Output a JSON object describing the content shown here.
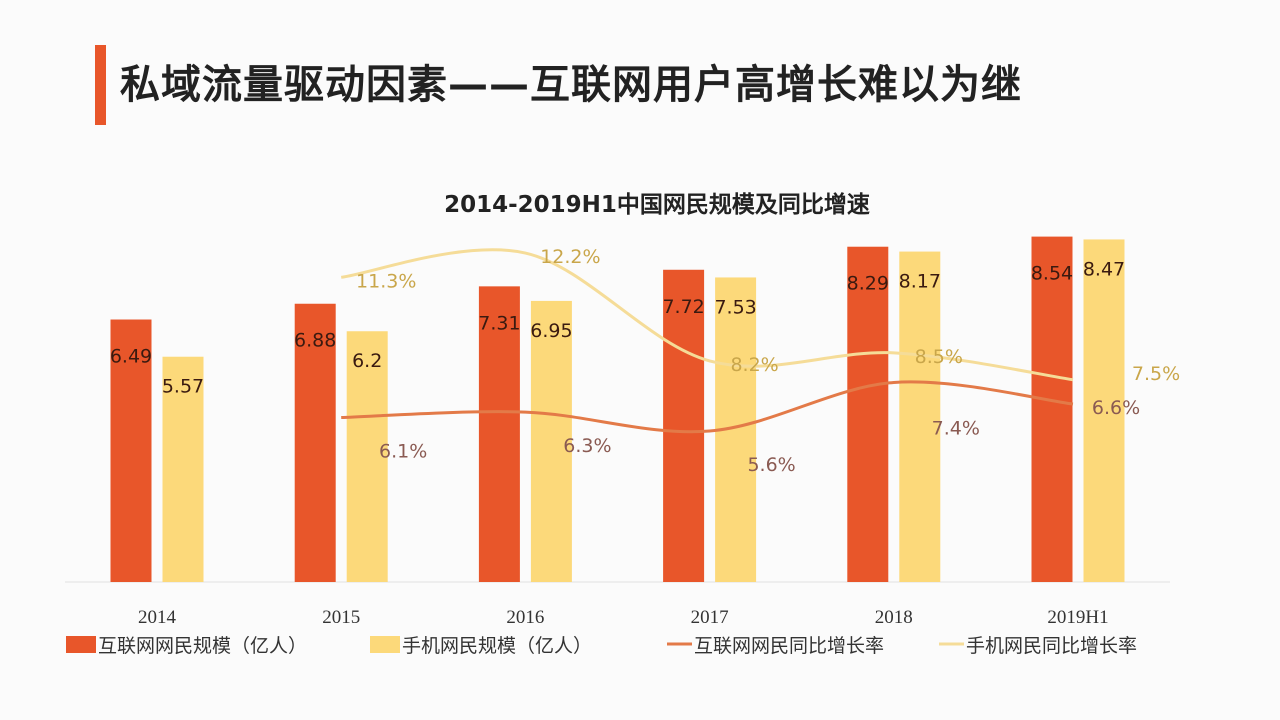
{
  "page": {
    "title": "私域流量驱动因素——互联网用户高增长难以为继"
  },
  "chart_data": {
    "type": "bar+line",
    "title": "2014-2019H1中国网民规模及同比增速",
    "categories": [
      "2014",
      "2015",
      "2016",
      "2017",
      "2018",
      "2019H1"
    ],
    "series": [
      {
        "name": "互联网网民规模（亿人）",
        "type": "bar",
        "axis": "left",
        "color": "#e8562a",
        "values": [
          6.49,
          6.88,
          7.31,
          7.72,
          8.29,
          8.54
        ],
        "labels": [
          "6.49",
          "6.88",
          "7.31",
          "7.72",
          "8.29",
          "8.54"
        ]
      },
      {
        "name": "手机网民规模（亿人）",
        "type": "bar",
        "axis": "left",
        "color": "#fcd97a",
        "values": [
          5.57,
          6.2,
          6.95,
          7.53,
          8.17,
          8.47
        ],
        "labels": [
          "5.57",
          "6.2",
          "6.95",
          "7.53",
          "8.17",
          "8.47"
        ]
      },
      {
        "name": "互联网网民同比增长率",
        "type": "line",
        "axis": "right",
        "color": "#e37a48",
        "values": [
          null,
          6.1,
          6.3,
          5.6,
          7.4,
          6.6
        ],
        "labels": [
          "",
          "6.1%",
          "6.3%",
          "5.6%",
          "7.4%",
          "6.6%"
        ]
      },
      {
        "name": "手机网民同比增长率",
        "type": "line",
        "axis": "right",
        "color": "#f5dc98",
        "values": [
          null,
          11.3,
          12.2,
          8.2,
          8.5,
          7.5
        ],
        "labels": [
          "",
          "11.3%",
          "12.2%",
          "8.2%",
          "8.5%",
          "7.5%"
        ]
      }
    ],
    "ylim": [
      0,
      9
    ],
    "y2lim": [
      0,
      13.5
    ],
    "grid": false,
    "legend": "bottom"
  }
}
